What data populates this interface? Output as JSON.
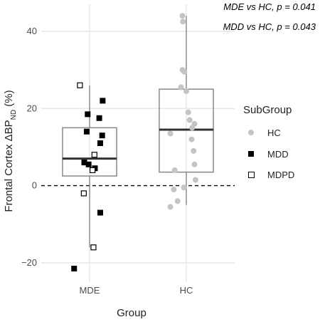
{
  "annotations": [
    "MDE vs HC, p = 0.041",
    "MDD vs HC, p = 0.043"
  ],
  "legend": {
    "title": "SubGroup",
    "items": [
      {
        "label": "HC",
        "shape": "circle",
        "color": "#c4c4c4"
      },
      {
        "label": "MDD",
        "shape": "filled-square",
        "color": "#000000"
      },
      {
        "label": "MDPD",
        "shape": "open-square",
        "color": "#000000"
      }
    ]
  },
  "chart_data": {
    "type": "box",
    "xlabel": "Group",
    "ylabel_main": "Frontal Cortex ΔBP",
    "ylabel_sub": "ND",
    "ylabel_unit": " (%)",
    "categories": [
      "MDE",
      "HC"
    ],
    "ylim": [
      -25,
      47
    ],
    "yticks": [
      40,
      20,
      0,
      -20
    ],
    "reference_line": 0,
    "boxes": [
      {
        "group": "MDE",
        "q1": 2.5,
        "median": 7,
        "q3": 15,
        "whisker_low": -16,
        "whisker_high": 26
      },
      {
        "group": "HC",
        "q1": 3.5,
        "median": 14.5,
        "q3": 25,
        "whisker_low": -5,
        "whisker_high": 44
      }
    ],
    "points": [
      {
        "group": "MDE",
        "subgroup": "MDPD",
        "y": 26,
        "jitter": -0.2
      },
      {
        "group": "MDE",
        "subgroup": "MDD",
        "y": 22,
        "jitter": 0.27
      },
      {
        "group": "MDE",
        "subgroup": "MDD",
        "y": 18.5,
        "jitter": -0.04
      },
      {
        "group": "MDE",
        "subgroup": "MDD",
        "y": 17.5,
        "jitter": 0.2
      },
      {
        "group": "MDE",
        "subgroup": "MDD",
        "y": 14,
        "jitter": -0.06
      },
      {
        "group": "MDE",
        "subgroup": "MDD",
        "y": 13,
        "jitter": 0.26
      },
      {
        "group": "MDE",
        "subgroup": "MDD",
        "y": 11,
        "jitter": 0.22
      },
      {
        "group": "MDE",
        "subgroup": "MDPD",
        "y": 8,
        "jitter": 0.1
      },
      {
        "group": "MDE",
        "subgroup": "MDD",
        "y": 6,
        "jitter": -0.11
      },
      {
        "group": "MDE",
        "subgroup": "MDD",
        "y": 5.5,
        "jitter": -0.02
      },
      {
        "group": "MDE",
        "subgroup": "MDD",
        "y": 4.5,
        "jitter": 0.11
      },
      {
        "group": "MDE",
        "subgroup": "MDPD",
        "y": 4,
        "jitter": 0.06
      },
      {
        "group": "MDE",
        "subgroup": "MDPD",
        "y": -2,
        "jitter": -0.12
      },
      {
        "group": "MDE",
        "subgroup": "MDD",
        "y": -7,
        "jitter": 0.22
      },
      {
        "group": "MDE",
        "subgroup": "MDPD",
        "y": -16,
        "jitter": 0.08
      },
      {
        "group": "MDE",
        "subgroup": "MDD",
        "y": -21.5,
        "jitter": -0.32
      },
      {
        "group": "HC",
        "subgroup": "HC",
        "y": 44,
        "jitter": -0.08
      },
      {
        "group": "HC",
        "subgroup": "HC",
        "y": 42.5,
        "jitter": -0.07
      },
      {
        "group": "HC",
        "subgroup": "HC",
        "y": 30,
        "jitter": -0.08
      },
      {
        "group": "HC",
        "subgroup": "HC",
        "y": 29.5,
        "jitter": -0.04
      },
      {
        "group": "HC",
        "subgroup": "HC",
        "y": 25.5,
        "jitter": -0.11
      },
      {
        "group": "HC",
        "subgroup": "HC",
        "y": 24.5,
        "jitter": 0.0
      },
      {
        "group": "HC",
        "subgroup": "HC",
        "y": 19,
        "jitter": 0.04
      },
      {
        "group": "HC",
        "subgroup": "HC",
        "y": 17,
        "jitter": 0.07
      },
      {
        "group": "HC",
        "subgroup": "HC",
        "y": 16,
        "jitter": 0.17
      },
      {
        "group": "HC",
        "subgroup": "HC",
        "y": 15,
        "jitter": 0.12
      },
      {
        "group": "HC",
        "subgroup": "HC",
        "y": 13.5,
        "jitter": -0.33
      },
      {
        "group": "HC",
        "subgroup": "HC",
        "y": 12,
        "jitter": 0.11
      },
      {
        "group": "HC",
        "subgroup": "HC",
        "y": 9,
        "jitter": 0.15
      },
      {
        "group": "HC",
        "subgroup": "HC",
        "y": 5.5,
        "jitter": 0.17
      },
      {
        "group": "HC",
        "subgroup": "HC",
        "y": 4,
        "jitter": -0.24
      },
      {
        "group": "HC",
        "subgroup": "HC",
        "y": 1.5,
        "jitter": 0.19
      },
      {
        "group": "HC",
        "subgroup": "HC",
        "y": -0.5,
        "jitter": -0.05
      },
      {
        "group": "HC",
        "subgroup": "HC",
        "y": -1,
        "jitter": -0.26
      },
      {
        "group": "HC",
        "subgroup": "HC",
        "y": -4,
        "jitter": -0.18
      },
      {
        "group": "HC",
        "subgroup": "HC",
        "y": -5.5,
        "jitter": -0.33
      }
    ]
  }
}
